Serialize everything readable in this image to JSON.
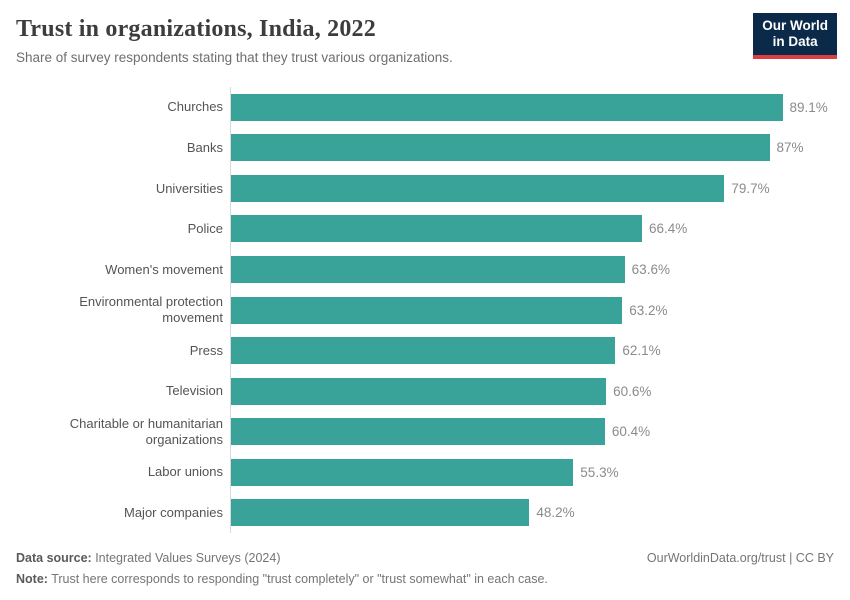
{
  "header": {
    "title": "Trust in organizations, India, 2022",
    "subtitle": "Share of survey respondents stating that they trust various organizations."
  },
  "logo": {
    "line1": "Our World",
    "line2": "in Data",
    "bg_color": "#0b2a4a",
    "accent_color": "#dc3e42"
  },
  "chart_data": {
    "type": "bar",
    "orientation": "horizontal",
    "title": "Trust in organizations, India, 2022",
    "categories": [
      "Churches",
      "Banks",
      "Universities",
      "Police",
      "Women's movement",
      "Environmental protection movement",
      "Press",
      "Television",
      "Charitable or humanitarian organizations",
      "Labor unions",
      "Major companies"
    ],
    "values": [
      89.1,
      87,
      79.7,
      66.4,
      63.6,
      63.2,
      62.1,
      60.6,
      60.4,
      55.3,
      48.2
    ],
    "value_labels": [
      "89.1%",
      "87%",
      "79.7%",
      "66.4%",
      "63.6%",
      "63.2%",
      "62.1%",
      "60.6%",
      "60.4%",
      "55.3%",
      "48.2%"
    ],
    "unit": "%",
    "xlim": [
      0,
      100
    ],
    "grid": false,
    "bar_color": "#39a299",
    "axis_line_color": "#d9d9d9"
  },
  "footer": {
    "data_source_label": "Data source:",
    "data_source": " Integrated Values Surveys (2024)",
    "attribution": "OurWorldinData.org/trust | CC BY",
    "note_label": "Note:",
    "note": " Trust here corresponds to responding \"trust completely\" or \"trust somewhat\" in each case."
  }
}
